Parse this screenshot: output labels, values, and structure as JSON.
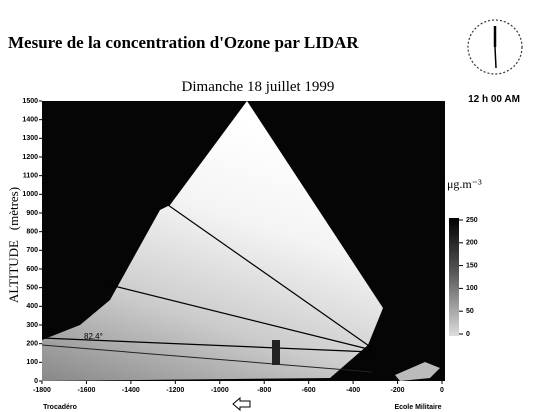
{
  "chart_data": {
    "type": "heatmap",
    "title": "Mesure de la concentration d'Ozone par LIDAR",
    "subtitle": "Dimanche 18 juillet 1999",
    "time": "12 h 00 AM",
    "ylabel": "ALTITUDE   (mètres)",
    "xlabel_left": "Trocadéro",
    "xlabel_right": "Ecole Militaire",
    "annotation": "82.4°",
    "xlim": [
      -1800,
      0
    ],
    "xticks": [
      -1800,
      -1600,
      -1400,
      -1200,
      -1000,
      -800,
      -600,
      -400,
      -200,
      0
    ],
    "ylim": [
      0,
      1500
    ],
    "yticks": [
      0,
      100,
      200,
      300,
      400,
      500,
      600,
      700,
      800,
      900,
      1000,
      1100,
      1200,
      1300,
      1400,
      1500
    ],
    "colorbar": {
      "label": "μg.m⁻³",
      "lim": [
        0,
        250
      ],
      "ticks": [
        0,
        50,
        100,
        150,
        200,
        250
      ]
    }
  }
}
